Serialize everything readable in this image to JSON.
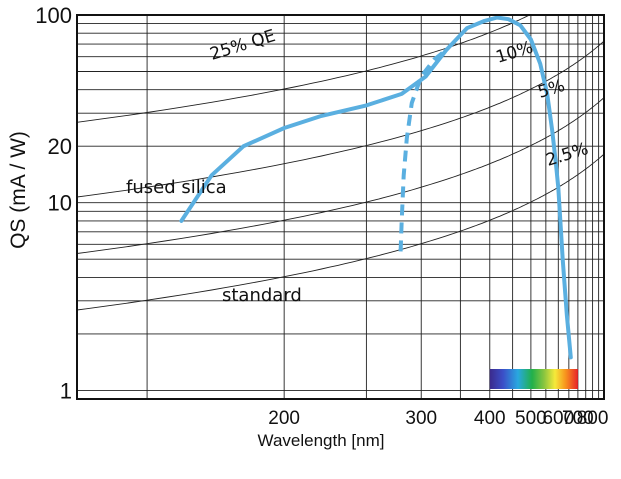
{
  "chart_data": {
    "type": "line",
    "title": "",
    "xlabel": "Wavelength [nm]",
    "ylabel": "QS (mA / W)",
    "x_scale": "reciprocal",
    "y_scale": "log",
    "xlim": [
      133,
      900
    ],
    "ylim": [
      0.9,
      100
    ],
    "x_ticks": [
      "200",
      "300",
      "400",
      "500",
      "600",
      "700",
      "800"
    ],
    "y_ticks": [
      "1",
      "10",
      "20",
      "100"
    ],
    "grid": true,
    "qe_lines": [
      {
        "label": "25% QE",
        "qe": 0.25
      },
      {
        "label": "10%",
        "qe": 0.1
      },
      {
        "label": "5%",
        "qe": 0.05
      },
      {
        "label": "2.5%",
        "qe": 0.025
      }
    ],
    "series": [
      {
        "name": "fused silica",
        "style": "solid",
        "color": "#5aafe0",
        "x": [
          160,
          170,
          182,
          200,
          220,
          250,
          280,
          305,
          330,
          360,
          390,
          415,
          440,
          470,
          500,
          530,
          555,
          575,
          590,
          600,
          620,
          640,
          660
        ],
        "y": [
          8,
          14,
          20,
          25,
          29,
          33,
          38,
          47,
          65,
          85,
          93,
          97,
          95,
          88,
          74,
          55,
          38,
          24,
          16,
          12,
          5,
          2.5,
          1.5
        ]
      },
      {
        "name": "standard",
        "style": "dashed",
        "color": "#5aafe0",
        "x": [
          279,
          280,
          282,
          285,
          290,
          300,
          315,
          330
        ],
        "y": [
          5.5,
          8,
          14,
          22,
          34,
          47,
          58,
          65
        ]
      }
    ],
    "annotations": [
      "fused silica",
      "standard"
    ],
    "spectrum_bar": {
      "from": 400,
      "to": 700
    }
  }
}
